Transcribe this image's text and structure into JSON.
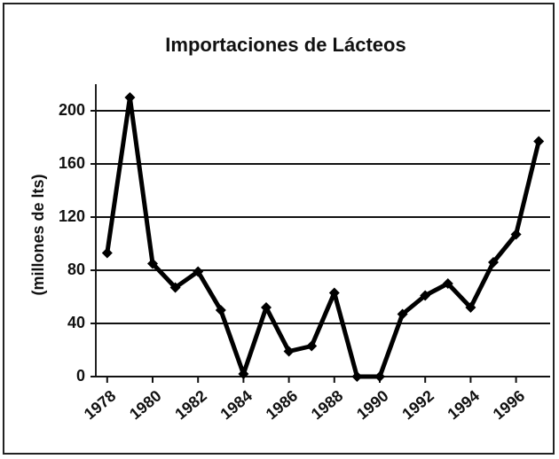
{
  "chart_data": {
    "type": "line",
    "title": "Importaciones de  Lácteos",
    "y_label": "(millones de lts)",
    "x": [
      1978,
      1979,
      1980,
      1981,
      1982,
      1983,
      1984,
      1985,
      1986,
      1987,
      1988,
      1989,
      1990,
      1991,
      1992,
      1993,
      1994,
      1995,
      1996,
      1997
    ],
    "series": [
      {
        "name": "Importaciones",
        "color": "#000000",
        "values": [
          93,
          210,
          85,
          67,
          79,
          50,
          2,
          52,
          19,
          23,
          63,
          0,
          0,
          47,
          61,
          70,
          52,
          86,
          107,
          177
        ]
      }
    ],
    "xlim": [
      1977.5,
      1997.5
    ],
    "xticks": [
      1978,
      1980,
      1982,
      1984,
      1986,
      1988,
      1990,
      1992,
      1994,
      1996
    ],
    "ylim": [
      0,
      220
    ],
    "yticks": [
      0,
      40,
      80,
      120,
      160,
      200
    ],
    "grid": true
  }
}
